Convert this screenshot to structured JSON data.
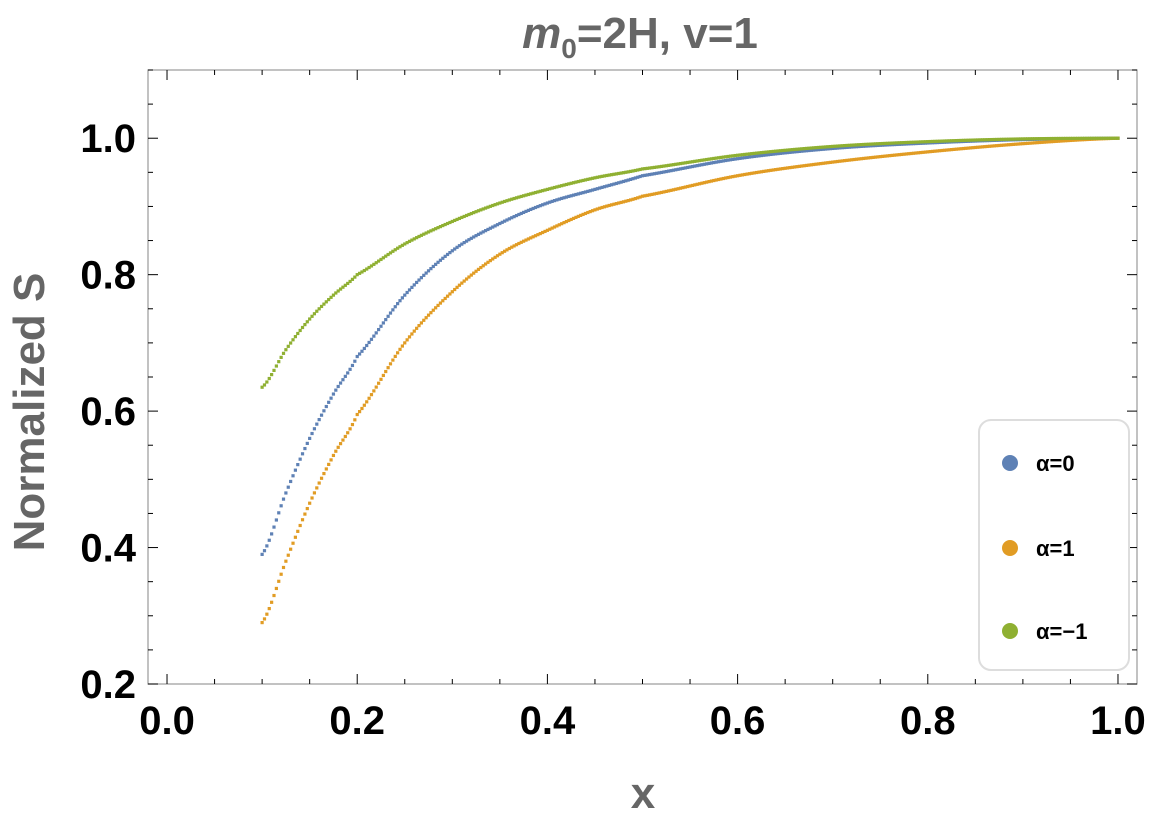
{
  "chart_data": {
    "type": "scatter",
    "title": {
      "main": "m",
      "sub": "0",
      "rest": "=2H, v=1"
    },
    "xlabel": "x",
    "ylabel": "Normalized S",
    "xlim": [
      -0.02,
      1.02
    ],
    "ylim": [
      0.2,
      1.1
    ],
    "xticks": [
      0.0,
      0.2,
      0.4,
      0.6,
      0.8,
      1.0
    ],
    "xtick_labels": [
      "0.0",
      "0.2",
      "0.4",
      "0.6",
      "0.8",
      "1.0"
    ],
    "yticks": [
      0.2,
      0.4,
      0.6,
      0.8,
      1.0
    ],
    "ytick_labels": [
      "0.2",
      "0.4",
      "0.6",
      "0.8",
      "1.0"
    ],
    "legend_position": "bottom-right",
    "grid": false,
    "series": [
      {
        "name": "α=0",
        "color": "#5E81B5",
        "x": [
          0.1,
          0.125,
          0.15,
          0.175,
          0.2,
          0.25,
          0.3,
          0.35,
          0.4,
          0.45,
          0.5,
          0.6,
          0.7,
          0.8,
          0.9,
          1.0
        ],
        "y": [
          0.39,
          0.48,
          0.56,
          0.625,
          0.68,
          0.77,
          0.835,
          0.875,
          0.905,
          0.925,
          0.945,
          0.97,
          0.985,
          0.993,
          0.998,
          1.0
        ]
      },
      {
        "name": "α=1",
        "color": "#E19C24",
        "x": [
          0.1,
          0.125,
          0.15,
          0.175,
          0.2,
          0.25,
          0.3,
          0.35,
          0.4,
          0.45,
          0.5,
          0.6,
          0.7,
          0.8,
          0.9,
          1.0
        ],
        "y": [
          0.29,
          0.38,
          0.465,
          0.535,
          0.595,
          0.7,
          0.775,
          0.83,
          0.865,
          0.895,
          0.915,
          0.945,
          0.965,
          0.98,
          0.992,
          1.0
        ]
      },
      {
        "name": "α=−1",
        "color": "#8FB032",
        "x": [
          0.1,
          0.125,
          0.15,
          0.175,
          0.2,
          0.25,
          0.3,
          0.35,
          0.4,
          0.45,
          0.5,
          0.6,
          0.7,
          0.8,
          0.9,
          1.0
        ],
        "y": [
          0.635,
          0.69,
          0.735,
          0.77,
          0.8,
          0.845,
          0.878,
          0.905,
          0.925,
          0.942,
          0.955,
          0.975,
          0.988,
          0.995,
          0.999,
          1.0
        ]
      }
    ]
  }
}
